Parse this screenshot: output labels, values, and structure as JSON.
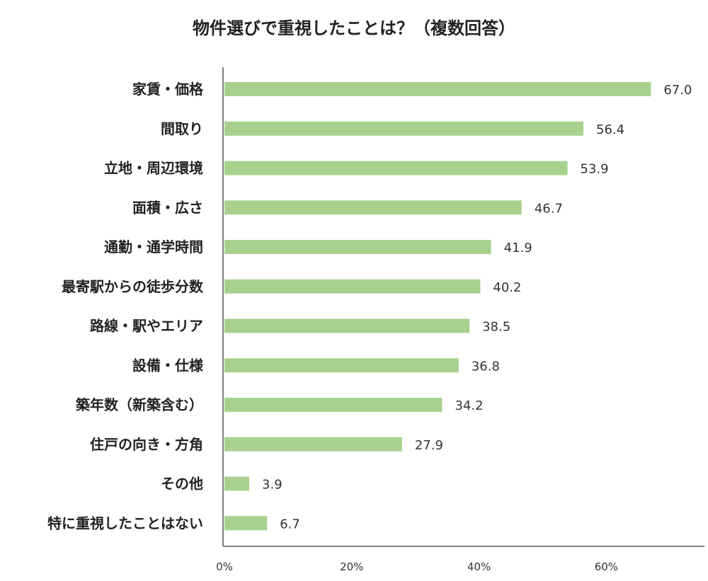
{
  "chart_data": {
    "type": "bar",
    "orientation": "horizontal",
    "title": "物件選びで重視したことは？（複数回答）",
    "xlabel": "",
    "ylabel": "",
    "xlim": [
      0,
      75
    ],
    "grid": false,
    "categories": [
      "家賃・価格",
      "間取り",
      "立地・周辺環境",
      "面積・広さ",
      "通勤・通学時間",
      "最寄駅からの徒歩分数",
      "路線・駅やエリア",
      "設備・仕様",
      "築年数（新築含む）",
      "住戸の向き・方角",
      "その他",
      "特に重視したことはない"
    ],
    "values": [
      67.0,
      56.4,
      53.9,
      46.7,
      41.9,
      40.2,
      38.5,
      36.8,
      34.2,
      27.9,
      3.9,
      6.7
    ],
    "value_labels": [
      "67.0",
      "56.4",
      "53.9",
      "46.7",
      "41.9",
      "40.2",
      "38.5",
      "36.8",
      "34.2",
      "27.9",
      "3.9",
      "6.7"
    ],
    "x_ticks": [
      0,
      20,
      40,
      60
    ],
    "x_tick_labels": [
      "0%",
      "20%",
      "40%",
      "60%"
    ],
    "bar_color": "#a9d18e",
    "axis_color": "#7f7f7f"
  }
}
